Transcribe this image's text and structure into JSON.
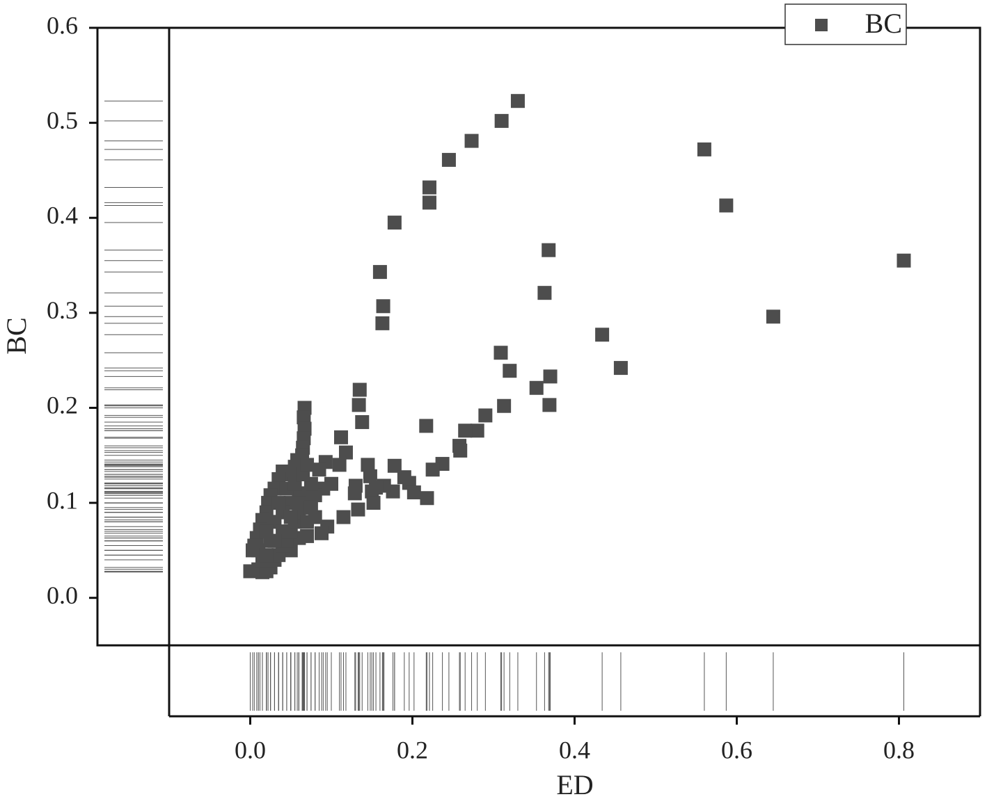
{
  "chart_data": {
    "type": "scatter",
    "xlabel": "ED",
    "ylabel": "BC",
    "xlim": [
      -0.1,
      0.9
    ],
    "ylim": [
      -0.05,
      0.6
    ],
    "xticks": [
      {
        "value": 0,
        "label": "0.0"
      },
      0.2,
      0.4,
      0.6,
      0.8
    ],
    "yticks": [
      {
        "value": 0,
        "label": "0.0"
      },
      0.1,
      0.2,
      0.3,
      0.4,
      0.5,
      0.6
    ],
    "legend": "upper right",
    "rug": true,
    "x": [
      0.33,
      0.31,
      0.273,
      0.245,
      0.221,
      0.221,
      0.178,
      0.16,
      0.164,
      0.163,
      0.56,
      0.587,
      0.368,
      0.363,
      0.806,
      0.645,
      0.434,
      0.457,
      0.309,
      0.32,
      0.37,
      0.353,
      0.369,
      0.313,
      0.29,
      0.217,
      0.28,
      0.265,
      0.258,
      0.259,
      0.135,
      0.134,
      0.138,
      0.112,
      0.118,
      0.237,
      0.225,
      0.178,
      0.19,
      0.196,
      0.202,
      0.218,
      0.176,
      0.165,
      0.155,
      0.145,
      0.148,
      0.15,
      0.152,
      0.133,
      0.129,
      0.13,
      0.115,
      0.11,
      0.1,
      0.093,
      0.085,
      0.09,
      0.08,
      0.095,
      0.088,
      0.07,
      0.06,
      0.05,
      0.067,
      0.066,
      0.067,
      0.066,
      0.065,
      0.064,
      0.058,
      0.055,
      0.05,
      0.04,
      0.035,
      0.03,
      0.025,
      0.022,
      0.02,
      0.015,
      0.012,
      0.008,
      0.005,
      0.003,
      0.0,
      0.01,
      0.015,
      0.02,
      0.025,
      0.03,
      0.035,
      0.04,
      0.045,
      0.05,
      0.055,
      0.06,
      0.065,
      0.07,
      0.075,
      0.06,
      0.05,
      0.04,
      0.03,
      0.02,
      0.01,
      0.045,
      0.055,
      0.065,
      0.07,
      0.035,
      0.025,
      0.015,
      0.04,
      0.05,
      0.06,
      0.03,
      0.02,
      0.075,
      0.08,
      0.07
    ],
    "series": [
      {
        "name": "BC",
        "color": "#4d4d4d",
        "values": [
          0.523,
          0.502,
          0.481,
          0.461,
          0.432,
          0.416,
          0.395,
          0.343,
          0.307,
          0.289,
          0.472,
          0.413,
          0.366,
          0.321,
          0.355,
          0.296,
          0.277,
          0.242,
          0.258,
          0.239,
          0.233,
          0.221,
          0.203,
          0.202,
          0.192,
          0.181,
          0.176,
          0.176,
          0.16,
          0.155,
          0.219,
          0.203,
          0.185,
          0.169,
          0.153,
          0.141,
          0.135,
          0.139,
          0.127,
          0.121,
          0.111,
          0.105,
          0.112,
          0.118,
          0.116,
          0.14,
          0.128,
          0.112,
          0.1,
          0.093,
          0.11,
          0.118,
          0.085,
          0.14,
          0.12,
          0.143,
          0.135,
          0.115,
          0.108,
          0.075,
          0.068,
          0.065,
          0.063,
          0.05,
          0.2,
          0.19,
          0.178,
          0.168,
          0.158,
          0.15,
          0.145,
          0.138,
          0.13,
          0.133,
          0.125,
          0.115,
          0.108,
          0.1,
          0.09,
          0.082,
          0.072,
          0.063,
          0.055,
          0.05,
          0.028,
          0.03,
          0.027,
          0.028,
          0.032,
          0.04,
          0.045,
          0.055,
          0.06,
          0.07,
          0.08,
          0.09,
          0.1,
          0.11,
          0.12,
          0.11,
          0.1,
          0.09,
          0.08,
          0.07,
          0.05,
          0.115,
          0.12,
          0.13,
          0.14,
          0.1,
          0.06,
          0.04,
          0.07,
          0.085,
          0.1,
          0.06,
          0.045,
          0.095,
          0.085,
          0.08
        ]
      }
    ]
  }
}
